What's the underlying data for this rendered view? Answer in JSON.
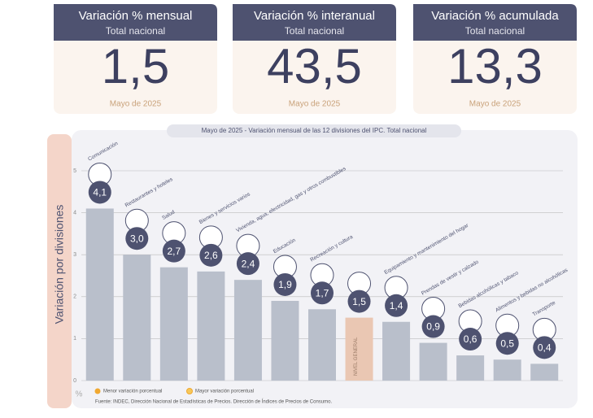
{
  "cards": [
    {
      "title": "Variación % mensual",
      "subtitle": "Total nacional",
      "value": "1,5",
      "date": "Mayo de 2025"
    },
    {
      "title": "Variación % interanual",
      "subtitle": "Total nacional",
      "value": "43,5",
      "date": "Mayo de 2025"
    },
    {
      "title": "Variación % acumulada",
      "subtitle": "Total nacional",
      "value": "13,3",
      "date": "Mayo de 2025"
    }
  ],
  "chart_data": {
    "type": "bar",
    "title": "Mayo de 2025 - Variación mensual de las 12 divisiones del IPC. Total nacional",
    "ylabel": "Variación por divisiones",
    "y_unit": "%",
    "categories": [
      "Comunicación",
      "Restaurantes y hoteles",
      "Salud",
      "Bienes y servicios varios",
      "Vivienda, agua, electricidad, gas y otros combustibles",
      "Educación",
      "Recreación y cultura",
      "NIVEL GENERAL",
      "Equipamiento y mantenimiento del hogar",
      "Prendas de vestir y calzado",
      "Bebidas alcohólicas y tabaco",
      "Alimentos y bebidas no alcohólicas",
      "Transporte"
    ],
    "values": [
      4.1,
      3.0,
      2.7,
      2.6,
      2.4,
      1.9,
      1.7,
      1.5,
      1.4,
      0.9,
      0.6,
      0.5,
      0.4
    ],
    "value_labels": [
      "4,1",
      "3,0",
      "2,7",
      "2,6",
      "2,4",
      "1,9",
      "1,7",
      "1,5",
      "1,4",
      "0,9",
      "0,6",
      "0,5",
      "0,4"
    ],
    "color": "#b9bfcb",
    "highlight": 7,
    "highlight_color": "#eac7b3",
    "ylim": [
      0,
      5
    ],
    "yticks": [
      0,
      1,
      2,
      3,
      4,
      5
    ],
    "grid": true,
    "legend": [
      "Menor variación porcentual",
      "Mayor variación porcentual"
    ],
    "source": "Fuente: INDEC, Dirección Nacional de Estadísticas de Precios. Dirección de Índices de Precios de Consumo."
  }
}
